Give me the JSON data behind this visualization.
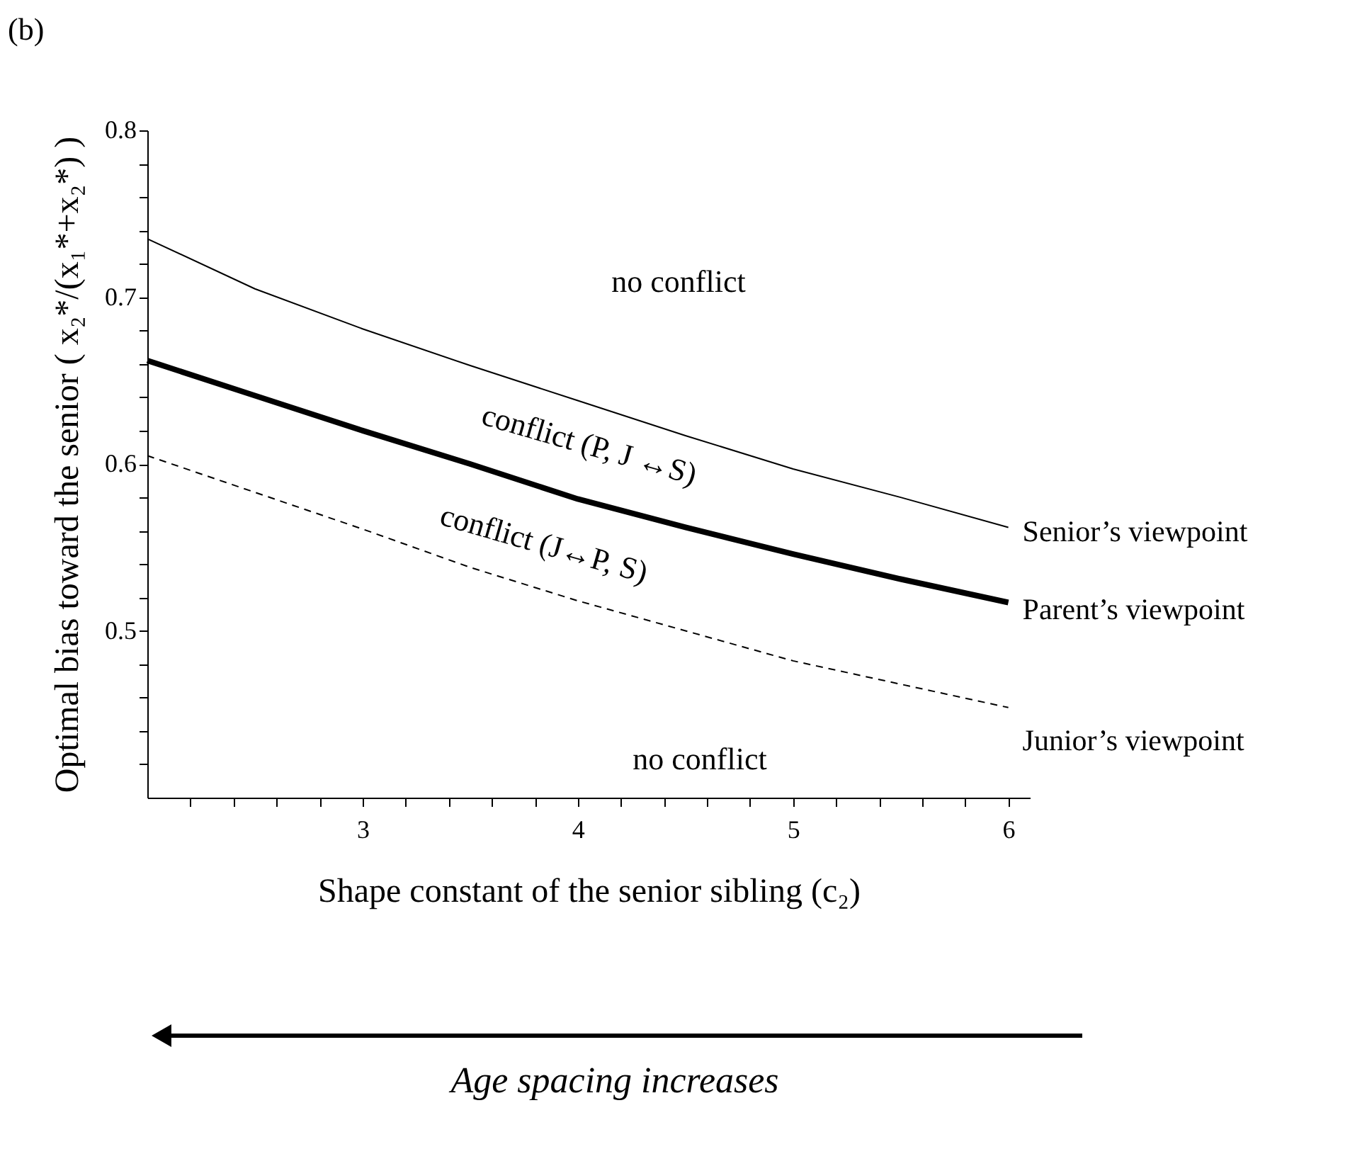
{
  "chart_data": {
    "type": "line",
    "title": "(b)",
    "xlabel": "Shape constant of the senior sibling (c₂)",
    "ylabel": "Optimal bias toward the senior ( x₂*/(x₁*+x₂*) )",
    "xlim": [
      2,
      6.1
    ],
    "ylim": [
      0.4,
      0.8
    ],
    "xticks": [
      {
        "value": 2.2,
        "label": null
      },
      {
        "value": 2.4,
        "label": null
      },
      {
        "value": 2.6,
        "label": null
      },
      {
        "value": 2.8,
        "label": null
      },
      3,
      {
        "value": 3.2,
        "label": null
      },
      {
        "value": 3.4,
        "label": null
      },
      {
        "value": 3.6,
        "label": null
      },
      {
        "value": 3.8,
        "label": null
      },
      4,
      {
        "value": 4.2,
        "label": null
      },
      {
        "value": 4.4,
        "label": null
      },
      {
        "value": 4.6,
        "label": null
      },
      {
        "value": 4.8,
        "label": null
      },
      5,
      {
        "value": 5.2,
        "label": null
      },
      {
        "value": 5.4,
        "label": null
      },
      {
        "value": 5.6,
        "label": null
      },
      {
        "value": 5.8,
        "label": null
      },
      6
    ],
    "yticks": [
      {
        "value": 0.42,
        "label": null
      },
      {
        "value": 0.44,
        "label": null
      },
      {
        "value": 0.46,
        "label": null
      },
      {
        "value": 0.48,
        "label": null
      },
      0.5,
      {
        "value": 0.52,
        "label": null
      },
      {
        "value": 0.54,
        "label": null
      },
      {
        "value": 0.56,
        "label": null
      },
      {
        "value": 0.58,
        "label": null
      },
      0.6,
      {
        "value": 0.62,
        "label": null
      },
      {
        "value": 0.64,
        "label": null
      },
      {
        "value": 0.66,
        "label": null
      },
      {
        "value": 0.68,
        "label": null
      },
      0.7,
      {
        "value": 0.72,
        "label": null
      },
      {
        "value": 0.74,
        "label": null
      },
      {
        "value": 0.76,
        "label": null
      },
      {
        "value": 0.78,
        "label": null
      },
      0.8
    ],
    "grid": false,
    "legend": false,
    "x": [
      2,
      2.5,
      3,
      3.5,
      4,
      4.5,
      5,
      5.5,
      6
    ],
    "series": [
      {
        "name": "Senior’s viewpoint",
        "color": "#000000",
        "line_style": "solid",
        "values": [
          0.735,
          0.705,
          0.681,
          0.659,
          0.638,
          0.617,
          0.597,
          0.58,
          0.562
        ]
      },
      {
        "name": "Parent’s viewpoint",
        "color": "#000000",
        "line_style": "solid",
        "values": [
          0.662,
          0.641,
          0.62,
          0.6,
          0.579,
          0.562,
          0.546,
          0.531,
          0.517
        ]
      },
      {
        "name": "Junior’s viewpoint",
        "color": "#000000",
        "line_style": "dashed",
        "values": [
          0.605,
          0.583,
          0.561,
          0.538,
          0.518,
          0.5,
          0.482,
          0.468,
          0.454
        ]
      }
    ],
    "annotations": [
      "no conflict",
      "conflict (P, J ↔S)",
      "conflict (J↔P, S)",
      "no conflict",
      "Age spacing increases"
    ]
  }
}
